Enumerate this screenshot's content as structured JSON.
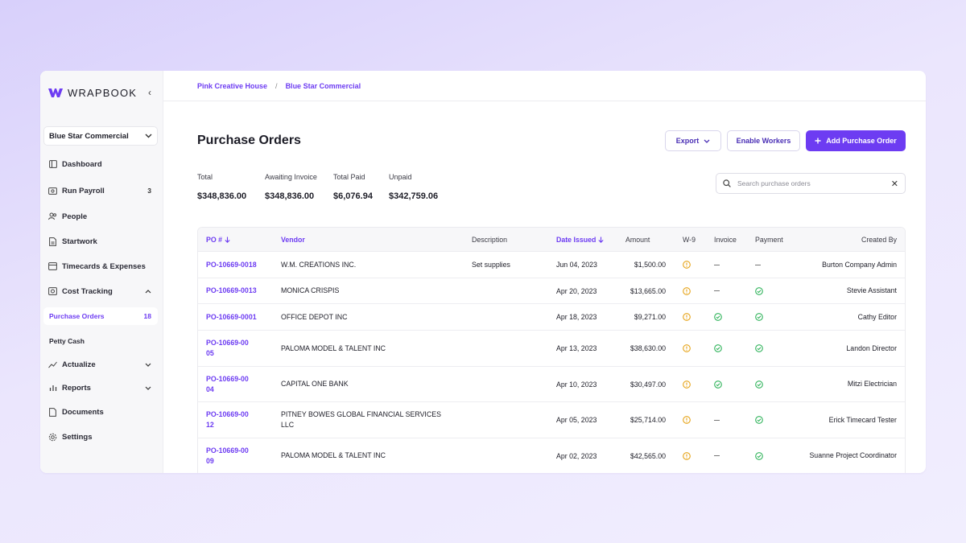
{
  "sidebar": {
    "brand": "WRAPBOOK",
    "project": "Blue Star Commercial",
    "items": [
      {
        "label": "Dashboard",
        "icon": "dashboard-icon"
      },
      {
        "label": "Run Payroll",
        "icon": "payroll-icon",
        "badge": "3"
      },
      {
        "label": "People",
        "icon": "people-icon"
      },
      {
        "label": "Startwork",
        "icon": "document-icon"
      },
      {
        "label": "Timecards & Expenses",
        "icon": "timecard-icon"
      },
      {
        "label": "Cost Tracking",
        "icon": "cost-tracking-icon"
      },
      {
        "label": "Purchase Orders",
        "badge": "18"
      },
      {
        "label": "Petty Cash"
      },
      {
        "label": "Actualize",
        "icon": "trend-icon"
      },
      {
        "label": "Reports",
        "icon": "reports-icon"
      },
      {
        "label": "Documents",
        "icon": "documents-icon"
      },
      {
        "label": "Settings",
        "icon": "gear-icon"
      }
    ]
  },
  "breadcrumb": {
    "parent": "Pink Creative House",
    "separator": "/",
    "current": "Blue Star Commercial"
  },
  "page": {
    "title": "Purchase Orders",
    "export_label": "Export",
    "enable_workers_label": "Enable Workers",
    "add_po_label": "Add Purchase Order"
  },
  "summary": [
    {
      "label": "Total",
      "value": "$348,836.00"
    },
    {
      "label": "Awaiting Invoice",
      "value": "$348,836.00"
    },
    {
      "label": "Total Paid",
      "value": "$6,076.94"
    },
    {
      "label": "Unpaid",
      "value": "$342,759.06"
    }
  ],
  "search": {
    "placeholder": "Search purchase orders"
  },
  "table": {
    "columns": {
      "po": "PO #",
      "vendor": "Vendor",
      "description": "Description",
      "date": "Date Issued",
      "amount": "Amount",
      "w9": "W-9",
      "invoice": "Invoice",
      "payment": "Payment",
      "created_by": "Created By"
    },
    "rows": [
      {
        "po": "PO-10669-0018",
        "vendor": "W.M. CREATIONS INC.",
        "description": "Set supplies",
        "date": "Jun 04, 2023",
        "amount": "$1,500.00",
        "w9": "warning",
        "invoice": "none",
        "payment": "none",
        "created_by": "Burton Company Admin"
      },
      {
        "po": "PO-10669-0013",
        "vendor": "MONICA CRISPIS",
        "description": "",
        "date": "Apr 20, 2023",
        "amount": "$13,665.00",
        "w9": "warning",
        "invoice": "none",
        "payment": "done",
        "created_by": "Stevie Assistant"
      },
      {
        "po": "PO-10669-0001",
        "vendor": "OFFICE DEPOT INC",
        "description": "",
        "date": "Apr 18, 2023",
        "amount": "$9,271.00",
        "w9": "warning",
        "invoice": "done",
        "payment": "done",
        "created_by": "Cathy Editor"
      },
      {
        "po": "PO-10669-0005",
        "vendor": "PALOMA MODEL & TALENT INC",
        "description": "",
        "date": "Apr 13, 2023",
        "amount": "$38,630.00",
        "w9": "warning",
        "invoice": "done",
        "payment": "done",
        "created_by": "Landon Director"
      },
      {
        "po": "PO-10669-0004",
        "vendor": "CAPITAL ONE BANK",
        "description": "",
        "date": "Apr 10, 2023",
        "amount": "$30,497.00",
        "w9": "warning",
        "invoice": "done",
        "payment": "done",
        "created_by": "Mitzi Electrician"
      },
      {
        "po": "PO-10669-0012",
        "vendor": "PITNEY BOWES GLOBAL FINANCIAL SERVICES LLC",
        "description": "",
        "date": "Apr 05, 2023",
        "amount": "$25,714.00",
        "w9": "warning",
        "invoice": "none",
        "payment": "done",
        "created_by": "Erick Timecard Tester"
      },
      {
        "po": "PO-10669-0009",
        "vendor": "PALOMA MODEL & TALENT INC",
        "description": "",
        "date": "Apr 02, 2023",
        "amount": "$42,565.00",
        "w9": "warning",
        "invoice": "none",
        "payment": "done",
        "created_by": "Suanne Project Coordinator"
      }
    ]
  },
  "colors": {
    "accent": "#6d3cf2",
    "warning": "#e6a317",
    "success": "#2fb35a"
  }
}
